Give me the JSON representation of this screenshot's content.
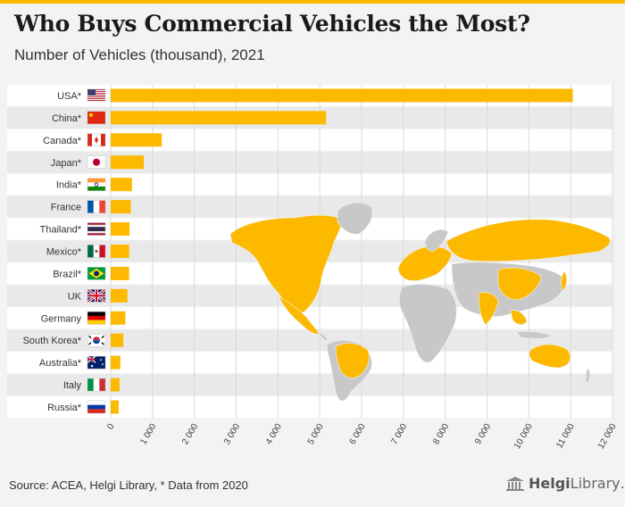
{
  "header": {
    "title": "Who Buys Commercial Vehicles the Most?",
    "subtitle": "Number of Vehicles (thousand), 2021"
  },
  "footer": {
    "source": "Source: ACEA, Helgi Library, * Data from 2020",
    "logo_prefix": "Helgi",
    "logo_suffix": "Library",
    "logo_dot": "."
  },
  "colors": {
    "bar": "#fcb900",
    "map_highlight": "#fcb900",
    "map_base": "#c8c8c8",
    "band_odd": "#ffffff",
    "band_even": "#e9e9e9",
    "grid": "#d9d9d9"
  },
  "chart_data": {
    "type": "bar",
    "orientation": "horizontal",
    "categories": [
      "USA*",
      "China*",
      "Canada*",
      "Japan*",
      "India*",
      "France",
      "Thailand*",
      "Mexico*",
      "Brazil*",
      "UK",
      "Germany",
      "South Korea*",
      "Australia*",
      "Italy",
      "Russia*"
    ],
    "flag_icons": [
      "us-flag-icon",
      "china-flag-icon",
      "canada-flag-icon",
      "japan-flag-icon",
      "india-flag-icon",
      "france-flag-icon",
      "thailand-flag-icon",
      "mexico-flag-icon",
      "brazil-flag-icon",
      "uk-flag-icon",
      "germany-flag-icon",
      "south-korea-flag-icon",
      "australia-flag-icon",
      "italy-flag-icon",
      "russia-flag-icon"
    ],
    "values": [
      11050,
      5150,
      1220,
      790,
      510,
      480,
      450,
      440,
      440,
      400,
      350,
      300,
      230,
      210,
      190
    ],
    "xlim": [
      0,
      12000
    ],
    "xticks": [
      0,
      1000,
      2000,
      3000,
      4000,
      5000,
      6000,
      7000,
      8000,
      9000,
      10000,
      11000,
      12000
    ],
    "xtick_labels": [
      "0",
      "1 000",
      "2 000",
      "3 000",
      "4 000",
      "5 000",
      "6 000",
      "7 000",
      "8 000",
      "9 000",
      "10 000",
      "11 000",
      "12 000"
    ],
    "grid": "vertical",
    "background_map": "world map with listed countries highlighted"
  }
}
